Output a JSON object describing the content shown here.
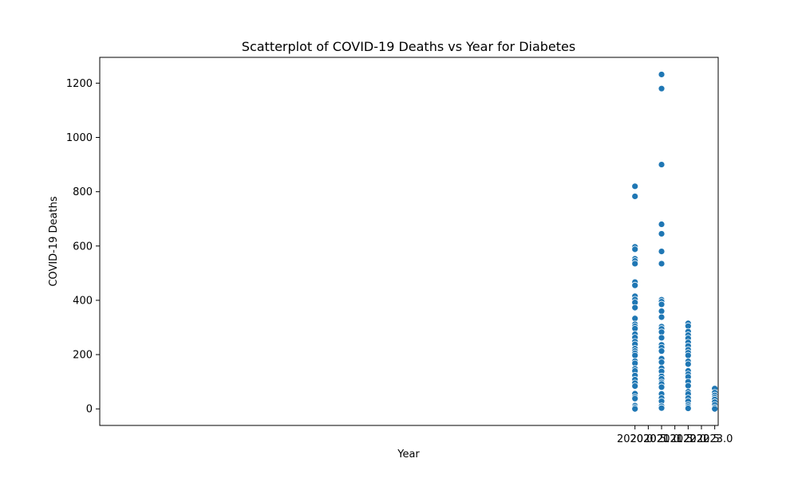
{
  "chart_data": {
    "type": "scatter",
    "title": "Scatterplot of COVID-19 Deaths vs Year for Diabetes",
    "xlabel": "Year",
    "ylabel": "COVID-19 Deaths",
    "xlim": [
      1999.87,
      2023.13
    ],
    "ylim": [
      -61,
      1295
    ],
    "xticks": [
      2020.0,
      2020.5,
      2021.0,
      2021.5,
      2022.0,
      2022.5,
      2023.0
    ],
    "xtick_labels": [
      "2020.0",
      "2020.5",
      "2021.0",
      "2021.5",
      "2022.0",
      "2022.5",
      "2023.0"
    ],
    "yticks": [
      0,
      200,
      400,
      600,
      800,
      1000,
      1200
    ],
    "ytick_labels": [
      "0",
      "200",
      "400",
      "600",
      "800",
      "1000",
      "1200"
    ],
    "grid": false,
    "marker_color": "#1f77b4",
    "series": [
      {
        "points": [
          {
            "x": 2020,
            "y": 820
          },
          {
            "x": 2020,
            "y": 783
          },
          {
            "x": 2020,
            "y": 597
          },
          {
            "x": 2020,
            "y": 588
          },
          {
            "x": 2020,
            "y": 553
          },
          {
            "x": 2020,
            "y": 545
          },
          {
            "x": 2020,
            "y": 535
          },
          {
            "x": 2020,
            "y": 467
          },
          {
            "x": 2020,
            "y": 455
          },
          {
            "x": 2020,
            "y": 415
          },
          {
            "x": 2020,
            "y": 403
          },
          {
            "x": 2020,
            "y": 392
          },
          {
            "x": 2020,
            "y": 373
          },
          {
            "x": 2020,
            "y": 333
          },
          {
            "x": 2020,
            "y": 312
          },
          {
            "x": 2020,
            "y": 304
          },
          {
            "x": 2020,
            "y": 296
          },
          {
            "x": 2020,
            "y": 275
          },
          {
            "x": 2020,
            "y": 263
          },
          {
            "x": 2020,
            "y": 248
          },
          {
            "x": 2020,
            "y": 238
          },
          {
            "x": 2020,
            "y": 222
          },
          {
            "x": 2020,
            "y": 213
          },
          {
            "x": 2020,
            "y": 205
          },
          {
            "x": 2020,
            "y": 197
          },
          {
            "x": 2020,
            "y": 176
          },
          {
            "x": 2020,
            "y": 168
          },
          {
            "x": 2020,
            "y": 148
          },
          {
            "x": 2020,
            "y": 140
          },
          {
            "x": 2020,
            "y": 123
          },
          {
            "x": 2020,
            "y": 108
          },
          {
            "x": 2020,
            "y": 95
          },
          {
            "x": 2020,
            "y": 84
          },
          {
            "x": 2020,
            "y": 56
          },
          {
            "x": 2020,
            "y": 44
          },
          {
            "x": 2020,
            "y": 38
          },
          {
            "x": 2020,
            "y": 12
          },
          {
            "x": 2020,
            "y": 5
          },
          {
            "x": 2020,
            "y": 0
          },
          {
            "x": 2021,
            "y": 1232
          },
          {
            "x": 2021,
            "y": 1180
          },
          {
            "x": 2021,
            "y": 900
          },
          {
            "x": 2021,
            "y": 680
          },
          {
            "x": 2021,
            "y": 645
          },
          {
            "x": 2021,
            "y": 580
          },
          {
            "x": 2021,
            "y": 535
          },
          {
            "x": 2021,
            "y": 402
          },
          {
            "x": 2021,
            "y": 395
          },
          {
            "x": 2021,
            "y": 385
          },
          {
            "x": 2021,
            "y": 360
          },
          {
            "x": 2021,
            "y": 338
          },
          {
            "x": 2021,
            "y": 303
          },
          {
            "x": 2021,
            "y": 295
          },
          {
            "x": 2021,
            "y": 283
          },
          {
            "x": 2021,
            "y": 262
          },
          {
            "x": 2021,
            "y": 236
          },
          {
            "x": 2021,
            "y": 226
          },
          {
            "x": 2021,
            "y": 213
          },
          {
            "x": 2021,
            "y": 185
          },
          {
            "x": 2021,
            "y": 172
          },
          {
            "x": 2021,
            "y": 150
          },
          {
            "x": 2021,
            "y": 138
          },
          {
            "x": 2021,
            "y": 120
          },
          {
            "x": 2021,
            "y": 111
          },
          {
            "x": 2021,
            "y": 98
          },
          {
            "x": 2021,
            "y": 92
          },
          {
            "x": 2021,
            "y": 80
          },
          {
            "x": 2021,
            "y": 55
          },
          {
            "x": 2021,
            "y": 40
          },
          {
            "x": 2021,
            "y": 28
          },
          {
            "x": 2021,
            "y": 10
          },
          {
            "x": 2021,
            "y": 3
          },
          {
            "x": 2022,
            "y": 315
          },
          {
            "x": 2022,
            "y": 305
          },
          {
            "x": 2022,
            "y": 285
          },
          {
            "x": 2022,
            "y": 272
          },
          {
            "x": 2022,
            "y": 260
          },
          {
            "x": 2022,
            "y": 245
          },
          {
            "x": 2022,
            "y": 232
          },
          {
            "x": 2022,
            "y": 218
          },
          {
            "x": 2022,
            "y": 207
          },
          {
            "x": 2022,
            "y": 197
          },
          {
            "x": 2022,
            "y": 175
          },
          {
            "x": 2022,
            "y": 165
          },
          {
            "x": 2022,
            "y": 140
          },
          {
            "x": 2022,
            "y": 128
          },
          {
            "x": 2022,
            "y": 118
          },
          {
            "x": 2022,
            "y": 100
          },
          {
            "x": 2022,
            "y": 85
          },
          {
            "x": 2022,
            "y": 63
          },
          {
            "x": 2022,
            "y": 55
          },
          {
            "x": 2022,
            "y": 40
          },
          {
            "x": 2022,
            "y": 28
          },
          {
            "x": 2022,
            "y": 15
          },
          {
            "x": 2022,
            "y": 8
          },
          {
            "x": 2022,
            "y": 2
          },
          {
            "x": 2023,
            "y": 75
          },
          {
            "x": 2023,
            "y": 60
          },
          {
            "x": 2023,
            "y": 50
          },
          {
            "x": 2023,
            "y": 42
          },
          {
            "x": 2023,
            "y": 35
          },
          {
            "x": 2023,
            "y": 25
          },
          {
            "x": 2023,
            "y": 15
          },
          {
            "x": 2023,
            "y": 5
          },
          {
            "x": 2023,
            "y": 0
          }
        ]
      }
    ]
  }
}
